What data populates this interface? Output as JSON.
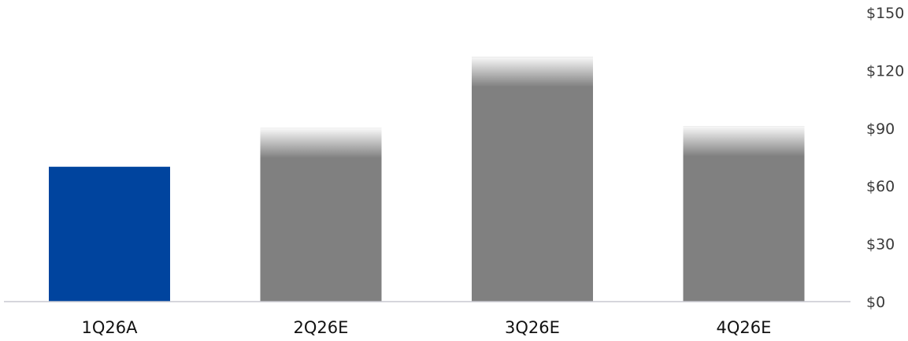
{
  "chart_data": {
    "type": "bar",
    "categories": [
      "1Q26A",
      "2Q26E",
      "3Q26E",
      "4Q26E"
    ],
    "values": [
      70,
      90,
      127,
      91
    ],
    "actual_flags": [
      true,
      false,
      false,
      false
    ],
    "ylim": [
      0,
      150
    ],
    "y_ticks": [
      0,
      30,
      60,
      90,
      120,
      150
    ],
    "y_tick_labels": [
      "$0",
      "$30",
      "$60",
      "$90",
      "$120",
      "$150"
    ],
    "y_axis_side": "right",
    "grid": false,
    "legend": "none",
    "title": "",
    "xlabel": "",
    "ylabel": "",
    "colors": {
      "actual": "#00449e",
      "estimate": "#808080",
      "baseline": "#c8c8d0",
      "tick_text": "#3a3a3a",
      "category_text": "#111111"
    }
  }
}
